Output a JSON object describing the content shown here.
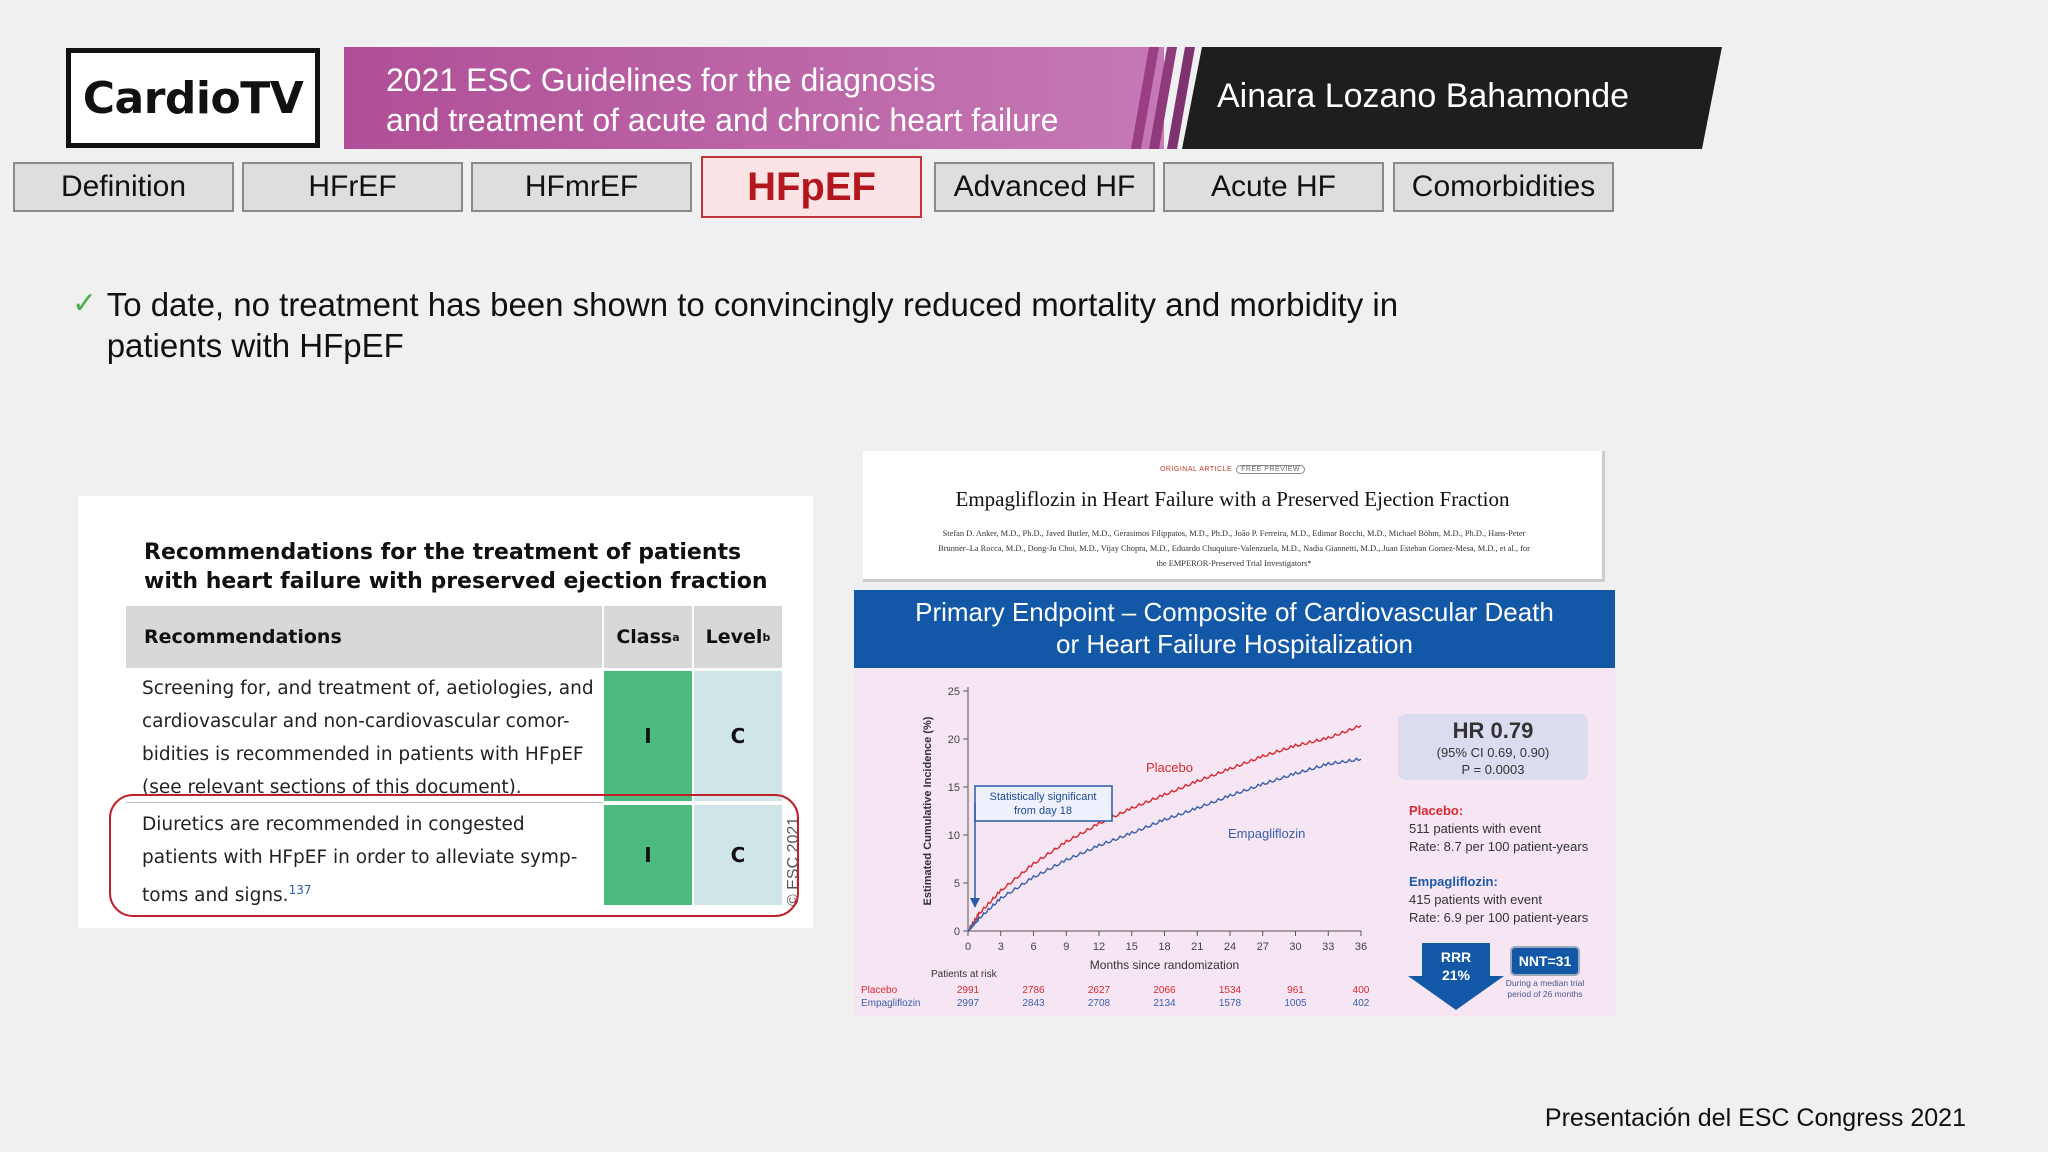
{
  "logo": {
    "text": "CardioTV"
  },
  "banner": {
    "title_line1": "2021 ESC Guidelines for the diagnosis",
    "title_line2": "and treatment of acute and chronic heart failure",
    "speaker": "Ainara Lozano Bahamonde",
    "colors": {
      "purple": "#b8549d",
      "dark": "#1e1e1e"
    }
  },
  "tabs": [
    {
      "label": "Definition",
      "active": false
    },
    {
      "label": "HFrEF",
      "active": false
    },
    {
      "label": "HFmrEF",
      "active": false
    },
    {
      "label": "HFpEF",
      "active": true
    },
    {
      "label": "Advanced HF",
      "active": false
    },
    {
      "label": "Acute HF",
      "active": false
    },
    {
      "label": "Comorbidities",
      "active": false
    }
  ],
  "bullet": {
    "icon": "checkmark-icon",
    "text": "To date, no treatment has been shown to convincingly reduced mortality and morbidity in patients with HFpEF"
  },
  "recommendations": {
    "title": "Recommendations for the treatment of patients with heart failure with preserved ejection fraction",
    "headers": {
      "recommendations": "Recommendations",
      "class": "Class",
      "class_sup": "a",
      "level": "Level",
      "level_sup": "b"
    },
    "rows": [
      {
        "line1": "Screening for, and treatment of, aetiologies, and",
        "line2": "cardiovascular and non-cardiovascular comor-",
        "line3": "bidities is recommended in patients with HFpEF",
        "line4": "(see relevant sections of this document).",
        "class": "I",
        "level": "C"
      },
      {
        "line1": "Diuretics are recommended in congested",
        "line2": "patients with HFpEF in order to alleviate symp-",
        "line3": "toms and signs.",
        "ref": "137",
        "class": "I",
        "level": "C"
      }
    ],
    "watermark": "© ESC 2021"
  },
  "article": {
    "kicker": "ORIGINAL ARTICLE",
    "pill": "FREE PREVIEW",
    "title": "Empagliflozin in Heart Failure with a Preserved Ejection Fraction",
    "authors_line1": "Stefan D. Anker, M.D., Ph.D., Javed Butler, M.D., Gerasimos Filippatos, M.D., Ph.D., João P. Ferreira, M.D., Edimar Bocchi, M.D., Michael Böhm, M.D., Ph.D., Hans-Peter",
    "authors_line2": "Brunner–La Rocca, M.D., Dong-Ju Choi, M.D., Vijay Chopra, M.D., Eduardo Chuquiure-Valenzuela, M.D., Nadia Giannetti, M.D., Juan Esteban Gomez-Mesa, M.D., et al., for",
    "authors_line3": "the EMPEROR-Preserved Trial Investigators*"
  },
  "figure": {
    "header_line1": "Primary Endpoint – Composite of Cardiovascular Death",
    "header_line2": "or Heart Failure Hospitalization",
    "hr": "HR 0.79",
    "ci": "(95% CI 0.69, 0.90)",
    "p": "P = 0.0003",
    "placebo_label": "Placebo:",
    "placebo_events": "511 patients with event",
    "placebo_rate": "Rate: 8.7 per 100 patient-years",
    "empa_label": "Empagliflozin:",
    "empa_events": "415 patients with event",
    "empa_rate": "Rate: 6.9 per 100 patient-years",
    "rrr_label": "RRR",
    "rrr_value": "21%",
    "nnt": "NNT=31",
    "nnt_note": "During a median trial period of 26 months",
    "annotation_line1": "Statistically significant",
    "annotation_line2": "from day 18",
    "patients_at_risk": "Patients at risk",
    "placebo_row_label": "Placebo",
    "empa_row_label": "Empagliflozin",
    "placebo_at_risk": [
      "2991",
      "2786",
      "2627",
      "2066",
      "1534",
      "961",
      "400"
    ],
    "empa_at_risk": [
      "2997",
      "2843",
      "2708",
      "2134",
      "1578",
      "1005",
      "402"
    ],
    "colors": {
      "placebo": "#d8292f",
      "empagliflozin": "#3a5fa8",
      "header": "#1358a6"
    }
  },
  "chart_data": {
    "type": "line",
    "xlabel": "Months since randomization",
    "ylabel": "Estimated Cumulative Incidence (%)",
    "x_ticks": [
      0,
      3,
      6,
      9,
      12,
      15,
      18,
      21,
      24,
      27,
      30,
      33,
      36
    ],
    "y_ticks": [
      0,
      5,
      10,
      15,
      20,
      25
    ],
    "xlim": [
      0,
      36
    ],
    "ylim": [
      0,
      25
    ],
    "series": [
      {
        "name": "Placebo",
        "x": [
          0,
          1,
          3,
          6,
          9,
          12,
          15,
          18,
          21,
          24,
          27,
          30,
          33,
          36
        ],
        "y": [
          0,
          1.8,
          4.2,
          7.0,
          9.3,
          11.2,
          12.8,
          14.2,
          15.6,
          16.9,
          18.2,
          19.3,
          20.1,
          21.4
        ]
      },
      {
        "name": "Empagliflozin",
        "x": [
          0,
          1,
          3,
          6,
          9,
          12,
          15,
          18,
          21,
          24,
          27,
          30,
          33,
          36
        ],
        "y": [
          0,
          1.3,
          3.4,
          5.6,
          7.4,
          8.9,
          10.2,
          11.6,
          12.8,
          14.1,
          15.3,
          16.4,
          17.4,
          17.9
        ]
      }
    ]
  },
  "footer": "Presentación del ESC Congress 2021"
}
